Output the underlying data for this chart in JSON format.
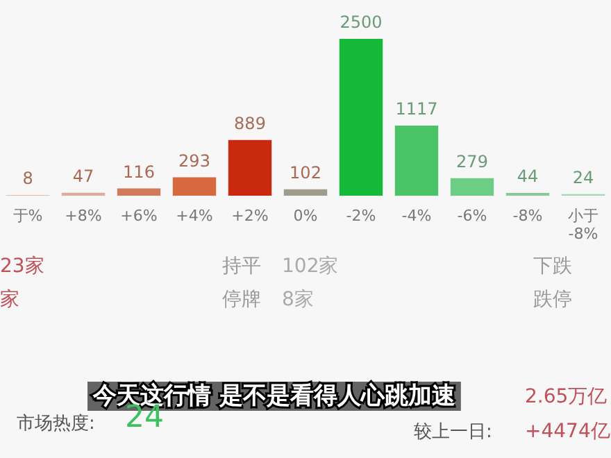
{
  "chart_data": {
    "type": "bar",
    "categories": [
      "于%",
      "+8%",
      "+6%",
      "+4%",
      "+2%",
      "0%",
      "-2%",
      "-4%",
      "-6%",
      "-8%",
      "小于-8%"
    ],
    "values": [
      8,
      47,
      116,
      293,
      889,
      102,
      2500,
      1117,
      279,
      44,
      24
    ],
    "colors": [
      "#e2a491",
      "#dcab9c",
      "#d47a5c",
      "#d6693f",
      "#c8290f",
      "#a09c8c",
      "#14b93a",
      "#4ac466",
      "#6ccd85",
      "#8cc79c",
      "#a9d5b5"
    ],
    "data_labels": true,
    "annotations": [
      "23家",
      "家",
      "持平",
      "102家",
      "停牌",
      "8家",
      "下跌",
      "跌停",
      "今天这行情 是不是看得人心跳加速",
      "市场热度:",
      "24",
      "2.65万亿",
      "较上一日:",
      "+4474亿"
    ]
  }
}
